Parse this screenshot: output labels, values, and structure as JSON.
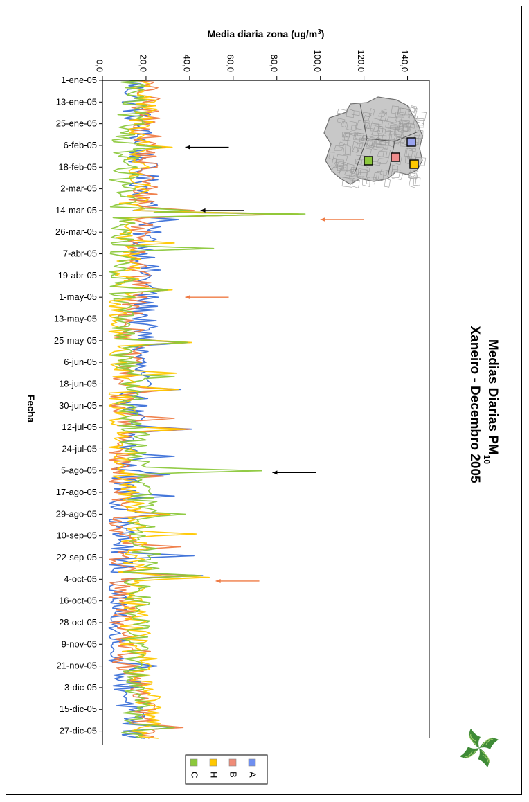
{
  "chart_data": {
    "type": "line",
    "title_line1": "Medias Diarias PM",
    "title_subscript": "10",
    "title_line2": "Xaneiro - Decembro 2005",
    "ylabel": "Media diaria zona (ug/m",
    "ylabel_superscript": "3",
    "ylabel_close": ")",
    "xlabel": "Fecha",
    "ylim": [
      0,
      150
    ],
    "yticks": [
      "0,0",
      "20,0",
      "40,0",
      "60,0",
      "80,0",
      "100,0",
      "120,0",
      "140,0"
    ],
    "ytick_values": [
      0,
      20,
      40,
      60,
      80,
      100,
      120,
      140
    ],
    "date_ticks": [
      "1-ene-05",
      "13-ene-05",
      "25-ene-05",
      "6-feb-05",
      "18-feb-05",
      "2-mar-05",
      "14-mar-05",
      "26-mar-05",
      "7-abr-05",
      "19-abr-05",
      "1-may-05",
      "13-may-05",
      "25-may-05",
      "6-jun-05",
      "18-jun-05",
      "30-jun-05",
      "12-jul-05",
      "24-jul-05",
      "5-ago-05",
      "17-ago-05",
      "29-ago-05",
      "10-sep-05",
      "22-sep-05",
      "4-oct-05",
      "16-oct-05",
      "28-oct-05",
      "9-nov-05",
      "21-nov-05",
      "3-dic-05",
      "15-dic-05",
      "27-dic-05"
    ],
    "legend": [
      {
        "key": "A",
        "color": "#6f8ff0"
      },
      {
        "key": "B",
        "color": "#f08c78"
      },
      {
        "key": "H",
        "color": "#ffc800"
      },
      {
        "key": "C",
        "color": "#8cc83c"
      }
    ],
    "series": [
      {
        "name": "A",
        "color": "#3a6fd8",
        "peaks": [
          [
            37,
            29
          ],
          [
            74,
            86
          ],
          [
            77,
            35
          ],
          [
            116,
            30
          ],
          [
            145,
            40
          ],
          [
            171,
            36
          ],
          [
            193,
            41
          ],
          [
            208,
            33
          ],
          [
            218,
            31
          ],
          [
            230,
            33
          ],
          [
            240,
            31
          ],
          [
            263,
            42
          ],
          [
            274,
            46
          ],
          [
            324,
            25
          ],
          [
            358,
            33
          ]
        ]
      },
      {
        "name": "B",
        "color": "#ef7b45",
        "peaks": [
          [
            37,
            28
          ],
          [
            72,
            42
          ],
          [
            74,
            87
          ],
          [
            116,
            29
          ],
          [
            145,
            38
          ],
          [
            171,
            34
          ],
          [
            187,
            33
          ],
          [
            193,
            40
          ],
          [
            219,
            28
          ],
          [
            240,
            30
          ],
          [
            258,
            36
          ],
          [
            274,
            45
          ],
          [
            316,
            22
          ],
          [
            358,
            37
          ]
        ]
      },
      {
        "name": "H",
        "color": "#ffc800",
        "peaks": [
          [
            37,
            32
          ],
          [
            58,
            22
          ],
          [
            74,
            90
          ],
          [
            90,
            33
          ],
          [
            116,
            32
          ],
          [
            145,
            41
          ],
          [
            162,
            34
          ],
          [
            171,
            35
          ],
          [
            193,
            38
          ],
          [
            240,
            31
          ],
          [
            251,
            43
          ],
          [
            275,
            49
          ],
          [
            320,
            25
          ],
          [
            352,
            24
          ]
        ]
      },
      {
        "name": "C",
        "color": "#8cc83c",
        "peaks": [
          [
            37,
            27
          ],
          [
            72,
            40
          ],
          [
            74,
            93
          ],
          [
            93,
            51
          ],
          [
            116,
            30
          ],
          [
            145,
            39
          ],
          [
            164,
            33
          ],
          [
            216,
            73
          ],
          [
            240,
            38
          ],
          [
            265,
            22
          ],
          [
            274,
            45
          ],
          [
            358,
            33
          ]
        ]
      }
    ],
    "annotations": [
      {
        "color": "#000000",
        "day": 37,
        "from_value": 58,
        "to_value": 38
      },
      {
        "color": "#000000",
        "day": 72,
        "from_value": 65,
        "to_value": 45
      },
      {
        "color": "#ef7b45",
        "day": 77,
        "from_value": 120,
        "to_value": 100
      },
      {
        "color": "#ef7b45",
        "day": 120,
        "from_value": 58,
        "to_value": 38
      },
      {
        "color": "#000000",
        "day": 217,
        "from_value": 98,
        "to_value": 78
      },
      {
        "color": "#ef7b45",
        "day": 277,
        "from_value": 72,
        "to_value": 52
      }
    ],
    "map_markers": [
      {
        "label": "A",
        "color": "#9aa4f0"
      },
      {
        "label": "B",
        "color": "#f08c8c"
      },
      {
        "label": "H",
        "color": "#ffc800"
      },
      {
        "label": "C",
        "color": "#8cc83c"
      }
    ]
  }
}
